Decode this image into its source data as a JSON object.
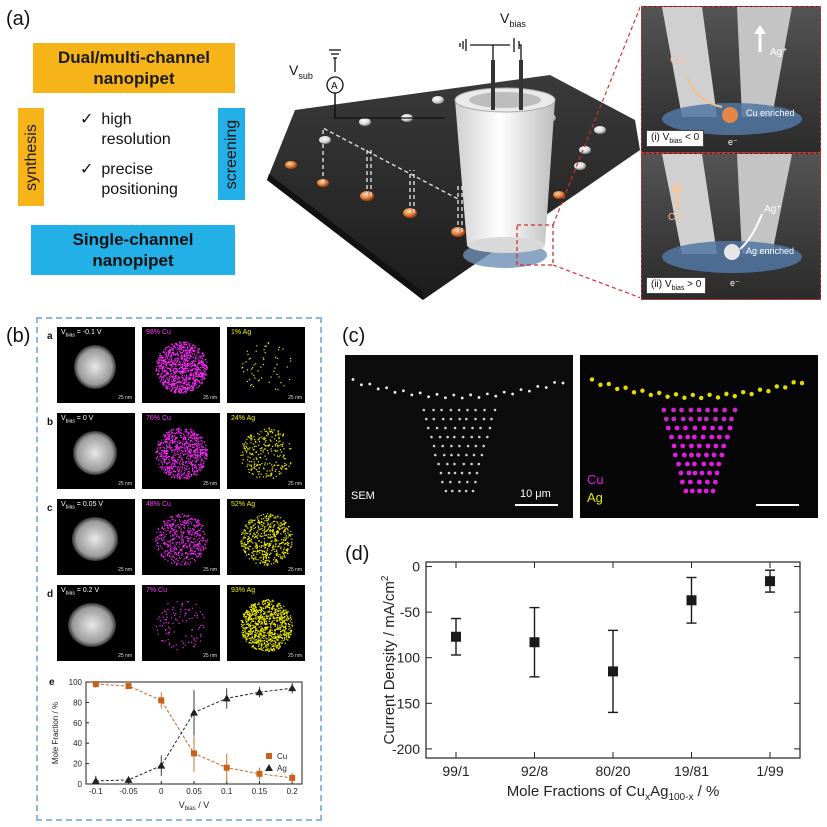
{
  "panel_a": {
    "label": "(a)",
    "dual_box": "Dual/multi-channel nanopipet",
    "single_box": "Single-channel nanopipet",
    "synthesis": "synthesis",
    "screening": "screening",
    "features": [
      "high resolution",
      "precise positioning"
    ],
    "check": "✓",
    "v_sub": "V",
    "v_sub_sub": "sub",
    "v_bias": "V",
    "v_bias_sub": "bias",
    "ammeter": "A",
    "inset_top": {
      "cu_ion": "Cu²⁺",
      "ag_ion": "Ag⁺",
      "enriched": "Cu enriched",
      "electron": "e⁻",
      "caption": "(i) V",
      "caption_sub": "bias",
      "caption_rest": " < 0"
    },
    "inset_bottom": {
      "cu_ion": "Cu²⁺",
      "ag_ion": "Ag⁺",
      "enriched": "Ag enriched",
      "electron": "e⁻",
      "caption": "(ii) V",
      "caption_sub": "bias",
      "caption_rest": " > 0"
    }
  },
  "panel_b": {
    "label": "(b)",
    "rows": [
      {
        "letter": "a",
        "v": "V",
        "v_sub": "bias",
        "v_val": " = -0.1 V",
        "cu": "98% Cu",
        "ag": "1% Ag"
      },
      {
        "letter": "b",
        "v": "V",
        "v_sub": "bias",
        "v_val": " = 0 V",
        "cu": "76% Cu",
        "ag": "24% Ag"
      },
      {
        "letter": "c",
        "v": "V",
        "v_sub": "bias",
        "v_val": " = 0.05 V",
        "cu": "48% Cu",
        "ag": "52% Ag"
      },
      {
        "letter": "d",
        "v": "V",
        "v_sub": "bias",
        "v_val": " = 0.2 V",
        "cu": "7% Cu",
        "ag": "93% Ag"
      }
    ],
    "scale": "25 nm",
    "e_letter": "e"
  },
  "panel_c": {
    "label": "(c)",
    "sem": "SEM",
    "scale": "10 μm",
    "cu": "Cu",
    "ag": "Ag"
  },
  "panel_d": {
    "label": "(d)"
  },
  "chart_data": [
    {
      "type": "line",
      "id": "panel-b-e",
      "title": "",
      "xlabel": "V",
      "xlabel_sub": "bias",
      "xlabel_rest": " / V",
      "ylabel": "Mole Fraction / %",
      "x": [
        -0.1,
        -0.05,
        0,
        0.05,
        0.1,
        0.15,
        0.2
      ],
      "xticks": [
        "-0.1",
        "-0.05",
        "0",
        "0.05",
        "0.1",
        "0.15",
        "0.2"
      ],
      "xlim": [
        -0.115,
        0.215
      ],
      "ylim": [
        0,
        100
      ],
      "yticks": [
        0,
        20,
        40,
        60,
        80,
        100
      ],
      "legend": "bottom-right",
      "series": [
        {
          "name": "Cu",
          "color": "#c8621b",
          "marker": "square",
          "values": [
            98,
            96,
            82,
            30,
            16,
            10,
            6
          ],
          "errors": [
            4,
            2,
            8,
            18,
            14,
            6,
            5
          ]
        },
        {
          "name": "Ag",
          "color": "#222222",
          "marker": "triangle",
          "values": [
            3,
            4,
            18,
            70,
            84,
            90,
            94
          ],
          "errors": [
            5,
            2,
            10,
            22,
            10,
            5,
            5
          ]
        }
      ]
    },
    {
      "type": "scatter",
      "id": "panel-d",
      "title": "",
      "xlabel": "Mole Fractions of Cu",
      "xlabel_sub1": "x",
      "xlabel_mid": "Ag",
      "xlabel_sub2": "100-x",
      "xlabel_rest": " / %",
      "ylabel": "Current Density / mA/cm",
      "ylabel_sup": "2",
      "categories": [
        "99/1",
        "92/8",
        "80/20",
        "19/81",
        "1/99"
      ],
      "values": [
        -77,
        -83,
        -115,
        -37,
        -16
      ],
      "errors": [
        20,
        38,
        45,
        25,
        12
      ],
      "ylim": [
        -210,
        5
      ],
      "yticks": [
        0,
        -50,
        -100,
        -150,
        -200
      ],
      "color": "#1a1a1a"
    }
  ]
}
